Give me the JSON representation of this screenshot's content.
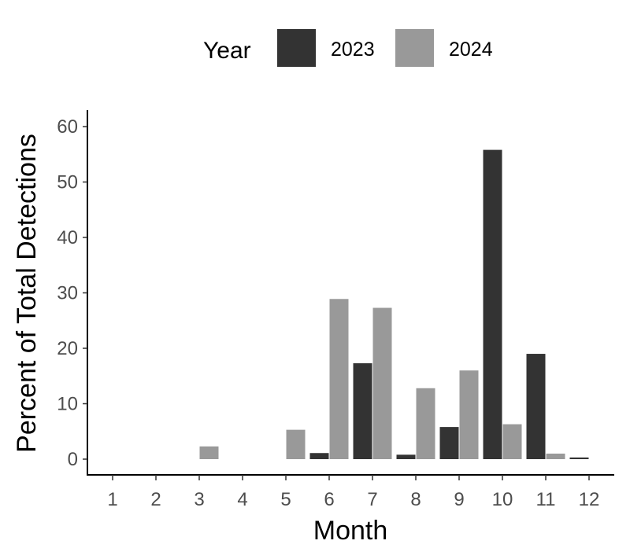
{
  "chart_data": {
    "type": "bar",
    "xlabel": "Month",
    "ylabel": "Percent of Total Detections",
    "ylim": [
      0,
      60
    ],
    "yticks": [
      0,
      10,
      20,
      30,
      40,
      50,
      60
    ],
    "categories": [
      "1",
      "2",
      "3",
      "4",
      "5",
      "6",
      "7",
      "8",
      "9",
      "10",
      "11",
      "12"
    ],
    "grid": false,
    "legend": {
      "title": "Year",
      "position": "top"
    },
    "series": [
      {
        "name": "2023",
        "color": "#333333",
        "values": [
          0,
          0,
          0,
          0,
          0,
          1.1,
          17.3,
          0.8,
          5.8,
          55.8,
          19.0,
          0.3
        ]
      },
      {
        "name": "2024",
        "color": "#999999",
        "values": [
          0,
          0,
          2.3,
          0,
          5.3,
          28.9,
          27.3,
          12.8,
          16.0,
          6.3,
          1.0,
          0
        ]
      }
    ]
  }
}
